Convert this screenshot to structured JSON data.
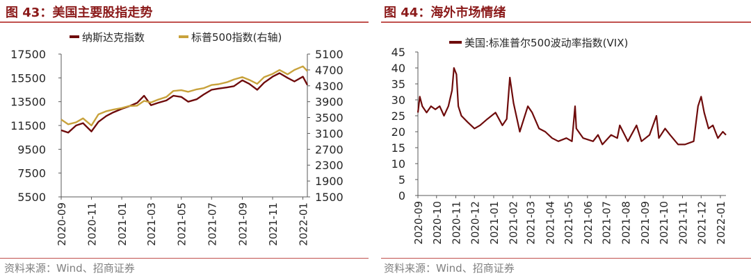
{
  "figures": [
    {
      "title": "图 43：美国主要股指走势",
      "source": "资料来源：Wind、招商证券"
    },
    {
      "title": "图 44：海外市场情绪",
      "source": "资料来源：Wind、招商证券"
    }
  ],
  "colors": {
    "dark_red": "#6e0b0b",
    "gold": "#c8a23c",
    "title_red": "#8b1a1a",
    "rule": "#c0504d"
  },
  "chart_data": [
    {
      "type": "line",
      "x_ticks": [
        "2020-09",
        "2020-11",
        "2021-01",
        "2021-03",
        "2021-05",
        "2021-07",
        "2021-09",
        "2021-11",
        "2022-01"
      ],
      "ylim": [
        5500,
        17500
      ],
      "y_ticks": [
        5500,
        7500,
        9500,
        11500,
        13500,
        15500,
        17500
      ],
      "y2lim": [
        1500,
        5100
      ],
      "y2_ticks": [
        1500,
        1900,
        2300,
        2700,
        3100,
        3500,
        3900,
        4300,
        4700,
        5100
      ],
      "legend_position": "top",
      "series": [
        {
          "name": "纳斯达克指数",
          "axis": "left",
          "color": "#6e0b0b",
          "x": [
            "2020-09-01",
            "2020-09-15",
            "2020-10-01",
            "2020-10-15",
            "2020-11-01",
            "2020-11-15",
            "2020-12-01",
            "2020-12-15",
            "2021-01-01",
            "2021-01-15",
            "2021-02-01",
            "2021-02-15",
            "2021-03-01",
            "2021-03-15",
            "2021-04-01",
            "2021-04-15",
            "2021-05-01",
            "2021-05-15",
            "2021-06-01",
            "2021-06-15",
            "2021-07-01",
            "2021-07-15",
            "2021-08-01",
            "2021-08-15",
            "2021-09-01",
            "2021-09-15",
            "2021-10-01",
            "2021-10-15",
            "2021-11-01",
            "2021-11-15",
            "2021-12-01",
            "2021-12-15",
            "2022-01-01",
            "2022-01-10"
          ],
          "values": [
            11100,
            10900,
            11500,
            11700,
            11000,
            11800,
            12300,
            12600,
            12900,
            13100,
            13400,
            14000,
            13200,
            13400,
            13600,
            14000,
            13900,
            13500,
            13700,
            14100,
            14500,
            14600,
            14700,
            14800,
            15300,
            15000,
            14500,
            15100,
            15600,
            15900,
            15500,
            15200,
            15600,
            14900
          ]
        },
        {
          "name": "标普500指数(右轴)",
          "axis": "right",
          "color": "#c8a23c",
          "x": [
            "2020-09-01",
            "2020-09-15",
            "2020-10-01",
            "2020-10-15",
            "2020-11-01",
            "2020-11-15",
            "2020-12-01",
            "2020-12-15",
            "2021-01-01",
            "2021-01-15",
            "2021-02-01",
            "2021-02-15",
            "2021-03-01",
            "2021-03-15",
            "2021-04-01",
            "2021-04-15",
            "2021-05-01",
            "2021-05-15",
            "2021-06-01",
            "2021-06-15",
            "2021-07-01",
            "2021-07-15",
            "2021-08-01",
            "2021-08-15",
            "2021-09-01",
            "2021-09-15",
            "2021-10-01",
            "2021-10-15",
            "2021-11-01",
            "2021-11-15",
            "2021-12-01",
            "2021-12-15",
            "2022-01-01",
            "2022-01-10"
          ],
          "values": [
            3450,
            3330,
            3380,
            3480,
            3300,
            3580,
            3660,
            3700,
            3740,
            3790,
            3800,
            3920,
            3880,
            3950,
            4020,
            4170,
            4190,
            4150,
            4210,
            4240,
            4320,
            4340,
            4390,
            4460,
            4520,
            4450,
            4350,
            4520,
            4600,
            4700,
            4590,
            4700,
            4790,
            4670
          ]
        }
      ]
    },
    {
      "type": "line",
      "x_ticks": [
        "2020-09",
        "2020-10",
        "2020-11",
        "2020-12",
        "2021-01",
        "2021-02",
        "2021-03",
        "2021-04",
        "2021-05",
        "2021-06",
        "2021-07",
        "2021-08",
        "2021-09",
        "2021-10",
        "2021-11",
        "2021-12",
        "2022-01"
      ],
      "ylim": [
        0,
        45
      ],
      "y_ticks": [
        0,
        5,
        10,
        15,
        20,
        25,
        30,
        35,
        40,
        45
      ],
      "legend_position": "top",
      "series": [
        {
          "name": "美国:标准普尔500波动率指数(VIX)",
          "color": "#6e0b0b",
          "x": [
            "2020-09-01",
            "2020-09-04",
            "2020-09-08",
            "2020-09-15",
            "2020-09-22",
            "2020-09-29",
            "2020-10-06",
            "2020-10-13",
            "2020-10-20",
            "2020-10-26",
            "2020-10-29",
            "2020-11-02",
            "2020-11-05",
            "2020-11-10",
            "2020-11-20",
            "2020-12-01",
            "2020-12-10",
            "2020-12-22",
            "2021-01-04",
            "2021-01-15",
            "2021-01-22",
            "2021-01-27",
            "2021-02-02",
            "2021-02-12",
            "2021-02-25",
            "2021-03-04",
            "2021-03-15",
            "2021-03-25",
            "2021-04-05",
            "2021-04-15",
            "2021-04-28",
            "2021-05-07",
            "2021-05-12",
            "2021-05-14",
            "2021-05-25",
            "2021-06-10",
            "2021-06-18",
            "2021-06-25",
            "2021-07-09",
            "2021-07-19",
            "2021-07-23",
            "2021-08-05",
            "2021-08-19",
            "2021-08-27",
            "2021-09-09",
            "2021-09-20",
            "2021-09-24",
            "2021-10-04",
            "2021-10-12",
            "2021-10-25",
            "2021-11-05",
            "2021-11-19",
            "2021-11-26",
            "2021-12-01",
            "2021-12-06",
            "2021-12-13",
            "2021-12-20",
            "2021-12-28",
            "2022-01-05",
            "2022-01-10"
          ],
          "values": [
            26,
            31,
            28,
            26,
            28,
            27,
            28,
            25,
            28,
            33,
            40,
            38,
            28,
            25,
            23,
            21,
            22,
            24,
            26,
            22,
            24,
            37,
            29,
            20,
            28,
            26,
            21,
            20,
            18,
            17,
            18,
            17,
            28,
            21,
            18,
            17,
            19,
            16,
            19,
            18,
            22,
            17,
            22,
            17,
            19,
            25,
            18,
            21,
            19,
            16,
            16,
            17,
            28,
            31,
            26,
            21,
            22,
            18,
            20,
            19
          ]
        }
      ]
    }
  ]
}
